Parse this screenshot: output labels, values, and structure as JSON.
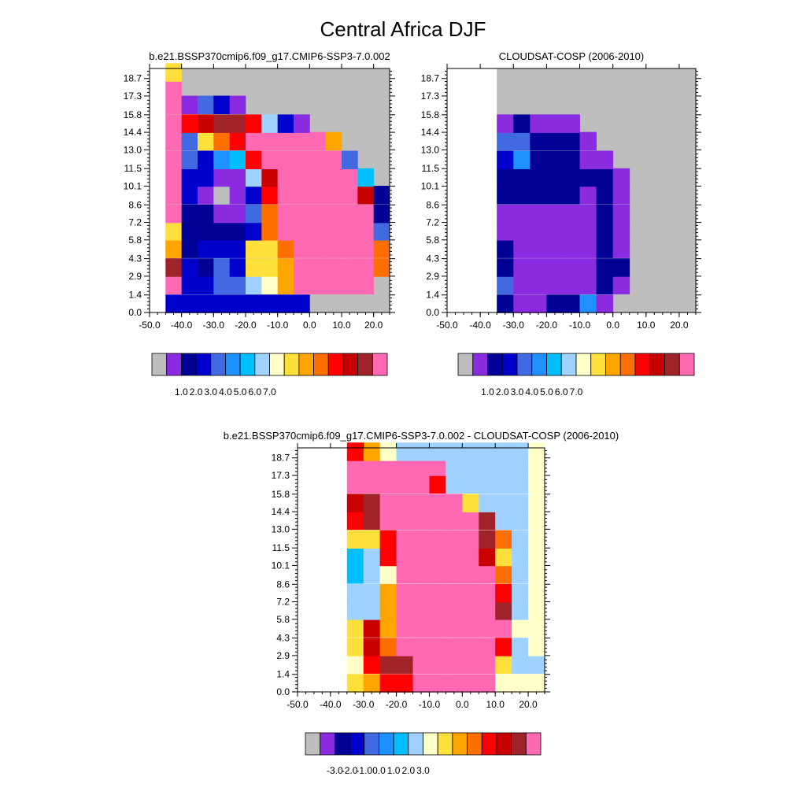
{
  "figure_title": "Central Africa DJF",
  "chart_data": [
    {
      "type": "heatmap",
      "title": "b.e21.BSSP370cmip6.f09_g17.CMIP6-SSP3-7.0.002",
      "x_ticks": [
        "-50.0",
        "-40.0",
        "-30.0",
        "-20.0",
        "-10.0",
        "0.0",
        "10.0",
        "20.0"
      ],
      "y_ticks": [
        "0.0",
        "1.4",
        "2.9",
        "4.3",
        "5.8",
        "7.2",
        "8.6",
        "10.1",
        "11.5",
        "13.0",
        "14.4",
        "15.8",
        "17.3",
        "18.7"
      ],
      "xlim": [
        -50,
        25
      ],
      "ylim": [
        0,
        19.5
      ],
      "cell_width": 5,
      "cell_height": 1.45,
      "colorbar": {
        "colors": [
          "#bebebe",
          "#8a2be2",
          "#000096",
          "#0000cd",
          "#4169e1",
          "#1e90ff",
          "#00bfff",
          "#a0d2ff",
          "#ffffc8",
          "#ffe03a",
          "#ffa500",
          "#ff6f00",
          "#ff0000",
          "#c80000",
          "#a0232a",
          "#ff69b4"
        ],
        "labels": [
          "1.0",
          "2.0",
          "3.0",
          "4.0",
          "5.0",
          "6.0",
          "7.0"
        ]
      },
      "rows": [
        {
          "lat": 0.7,
          "lon_start": -45,
          "cells": [
            3,
            3,
            3,
            3,
            3,
            3,
            3,
            3,
            3
          ]
        },
        {
          "lat": 2.2,
          "lon_start": -45,
          "cells": [
            15,
            3,
            3,
            4,
            4,
            7,
            8,
            10,
            15,
            15,
            15,
            15,
            15
          ]
        },
        {
          "lat": 3.6,
          "lon_start": -45,
          "cells": [
            14,
            3,
            2,
            4,
            3,
            9,
            9,
            10,
            15,
            15,
            15,
            15,
            15,
            11
          ]
        },
        {
          "lat": 5.1,
          "lon_start": -45,
          "cells": [
            10,
            2,
            3,
            3,
            3,
            9,
            9,
            11,
            15,
            15,
            15,
            15,
            15,
            11
          ]
        },
        {
          "lat": 6.5,
          "lon_start": -45,
          "cells": [
            9,
            2,
            2,
            2,
            2,
            3,
            11,
            15,
            15,
            15,
            15,
            15,
            15,
            4
          ]
        },
        {
          "lat": 7.9,
          "lon_start": -45,
          "cells": [
            15,
            2,
            2,
            1,
            1,
            4,
            11,
            15,
            15,
            15,
            15,
            15,
            15,
            2
          ]
        },
        {
          "lat": 9.4,
          "lon_start": -45,
          "cells": [
            15,
            3,
            1,
            0,
            1,
            3,
            12,
            15,
            15,
            15,
            15,
            15,
            13,
            2
          ]
        },
        {
          "lat": 10.8,
          "lon_start": -45,
          "cells": [
            15,
            3,
            3,
            1,
            1,
            7,
            13,
            15,
            15,
            15,
            15,
            15,
            6
          ]
        },
        {
          "lat": 12.2,
          "lon_start": -45,
          "cells": [
            15,
            4,
            3,
            5,
            6,
            12,
            15,
            15,
            15,
            15,
            15,
            4
          ]
        },
        {
          "lat": 13.7,
          "lon_start": -45,
          "cells": [
            15,
            4,
            9,
            11,
            12,
            15,
            15,
            15,
            15,
            15,
            10
          ]
        },
        {
          "lat": 15.1,
          "lon_start": -45,
          "cells": [
            15,
            12,
            13,
            14,
            14,
            12,
            7,
            3,
            1
          ]
        },
        {
          "lat": 16.6,
          "lon_start": -45,
          "cells": [
            15,
            1,
            4,
            3,
            1
          ]
        },
        {
          "lat": 18.0,
          "lon_start": -45,
          "cells": [
            15
          ]
        },
        {
          "lat": 19.2,
          "lon_start": -45,
          "cells": [
            9
          ]
        }
      ]
    },
    {
      "type": "heatmap",
      "title": "CLOUDSAT-COSP (2006-2010)",
      "x_ticks": [
        "-50.0",
        "-40.0",
        "-30.0",
        "-20.0",
        "-10.0",
        "0.0",
        "10.0",
        "20.0"
      ],
      "y_ticks": [
        "0.0",
        "1.4",
        "2.9",
        "4.3",
        "5.8",
        "7.2",
        "8.6",
        "10.1",
        "11.5",
        "13.0",
        "14.4",
        "15.8",
        "17.3",
        "18.7"
      ],
      "xlim": [
        -50,
        25
      ],
      "ylim": [
        0,
        19.5
      ],
      "cell_width": 5,
      "cell_height": 1.45,
      "colorbar": {
        "colors": [
          "#bebebe",
          "#8a2be2",
          "#000096",
          "#0000cd",
          "#4169e1",
          "#1e90ff",
          "#00bfff",
          "#a0d2ff",
          "#ffffc8",
          "#ffe03a",
          "#ffa500",
          "#ff6f00",
          "#ff0000",
          "#c80000",
          "#a0232a",
          "#ff69b4"
        ],
        "labels": [
          "1.0",
          "2.0",
          "3.0",
          "4.0",
          "5.0",
          "6.0",
          "7.0"
        ]
      },
      "rows": [
        {
          "lat": 0.7,
          "lon_start": -35,
          "cells": [
            2,
            1,
            1,
            2,
            2,
            5,
            1
          ]
        },
        {
          "lat": 2.2,
          "lon_start": -35,
          "cells": [
            4,
            1,
            1,
            1,
            1,
            1,
            2,
            1
          ]
        },
        {
          "lat": 3.6,
          "lon_start": -35,
          "cells": [
            2,
            1,
            1,
            1,
            1,
            1,
            2,
            2
          ]
        },
        {
          "lat": 5.1,
          "lon_start": -35,
          "cells": [
            2,
            1,
            1,
            1,
            1,
            1,
            2,
            1
          ]
        },
        {
          "lat": 6.5,
          "lon_start": -35,
          "cells": [
            1,
            1,
            1,
            1,
            1,
            1,
            2,
            1
          ]
        },
        {
          "lat": 7.9,
          "lon_start": -35,
          "cells": [
            1,
            1,
            1,
            1,
            1,
            1,
            2,
            1
          ]
        },
        {
          "lat": 9.4,
          "lon_start": -35,
          "cells": [
            2,
            2,
            2,
            2,
            2,
            1,
            2,
            1
          ]
        },
        {
          "lat": 10.8,
          "lon_start": -35,
          "cells": [
            2,
            2,
            2,
            2,
            2,
            2,
            2,
            1
          ]
        },
        {
          "lat": 12.2,
          "lon_start": -35,
          "cells": [
            3,
            5,
            2,
            2,
            2,
            1,
            1
          ]
        },
        {
          "lat": 13.7,
          "lon_start": -35,
          "cells": [
            4,
            4,
            2,
            2,
            2,
            1
          ]
        },
        {
          "lat": 15.1,
          "lon_start": -35,
          "cells": [
            1,
            2,
            1,
            1,
            1
          ]
        }
      ]
    },
    {
      "type": "heatmap",
      "title": "b.e21.BSSP370cmip6.f09_g17.CMIP6-SSP3-7.0.002 - CLOUDSAT-COSP (2006-2010)",
      "x_ticks": [
        "-50.0",
        "-40.0",
        "-30.0",
        "-20.0",
        "-10.0",
        "0.0",
        "10.0",
        "20.0"
      ],
      "y_ticks": [
        "0.0",
        "1.4",
        "2.9",
        "4.3",
        "5.8",
        "7.2",
        "8.6",
        "10.1",
        "11.5",
        "13.0",
        "14.4",
        "15.8",
        "17.3",
        "18.7"
      ],
      "xlim": [
        -50,
        25
      ],
      "ylim": [
        0,
        19.5
      ],
      "cell_width": 5,
      "cell_height": 1.45,
      "colorbar": {
        "colors": [
          "#bebebe",
          "#8a2be2",
          "#000096",
          "#0000cd",
          "#4169e1",
          "#1e90ff",
          "#00bfff",
          "#a0d2ff",
          "#ffffc8",
          "#ffe03a",
          "#ffa500",
          "#ff6f00",
          "#ff0000",
          "#c80000",
          "#a0232a",
          "#ff69b4"
        ],
        "labels": [
          "-3.0",
          "-2.0",
          "-1.0",
          "0.0",
          "1.0",
          "2.0",
          "3.0"
        ]
      },
      "rows": [
        {
          "lat": 0.7,
          "lon_start": -35,
          "cells": [
            9,
            10,
            12,
            12,
            15,
            15,
            15,
            15,
            15,
            8,
            8,
            8
          ]
        },
        {
          "lat": 2.2,
          "lon_start": -35,
          "cells": [
            8,
            12,
            14,
            14,
            15,
            15,
            15,
            15,
            15,
            9,
            7,
            7
          ]
        },
        {
          "lat": 3.6,
          "lon_start": -35,
          "cells": [
            9,
            13,
            11,
            15,
            15,
            15,
            15,
            15,
            15,
            12,
            7,
            8
          ]
        },
        {
          "lat": 5.1,
          "lon_start": -35,
          "cells": [
            9,
            13,
            10,
            15,
            15,
            15,
            15,
            15,
            15,
            15,
            8,
            8
          ]
        },
        {
          "lat": 6.5,
          "lon_start": -35,
          "cells": [
            7,
            7,
            10,
            15,
            15,
            15,
            15,
            15,
            15,
            14,
            7,
            8
          ]
        },
        {
          "lat": 7.9,
          "lon_start": -35,
          "cells": [
            7,
            7,
            10,
            15,
            15,
            15,
            15,
            15,
            15,
            12,
            7,
            8
          ]
        },
        {
          "lat": 9.4,
          "lon_start": -35,
          "cells": [
            6,
            7,
            8,
            15,
            15,
            15,
            15,
            15,
            15,
            11,
            7,
            8
          ]
        },
        {
          "lat": 10.8,
          "lon_start": -35,
          "cells": [
            6,
            7,
            12,
            15,
            15,
            15,
            15,
            15,
            13,
            9,
            7,
            8
          ]
        },
        {
          "lat": 12.2,
          "lon_start": -35,
          "cells": [
            9,
            9,
            12,
            15,
            15,
            15,
            15,
            15,
            14,
            11,
            7,
            8
          ]
        },
        {
          "lat": 13.7,
          "lon_start": -35,
          "cells": [
            12,
            14,
            15,
            15,
            15,
            15,
            15,
            15,
            14,
            7,
            7,
            8
          ]
        },
        {
          "lat": 15.1,
          "lon_start": -35,
          "cells": [
            13,
            14,
            15,
            15,
            15,
            15,
            15,
            9,
            7,
            7,
            7,
            8
          ]
        },
        {
          "lat": 16.6,
          "lon_start": -35,
          "cells": [
            15,
            15,
            15,
            15,
            15,
            12,
            7,
            7,
            7,
            7,
            7,
            8
          ]
        },
        {
          "lat": 18.0,
          "lon_start": -35,
          "cells": [
            15,
            15,
            15,
            15,
            15,
            15,
            7,
            7,
            7,
            7,
            7,
            8
          ]
        },
        {
          "lat": 19.2,
          "lon_start": -35,
          "cells": [
            12,
            10,
            8,
            7,
            7,
            7,
            7,
            7,
            7,
            7,
            7,
            8
          ]
        }
      ]
    }
  ]
}
